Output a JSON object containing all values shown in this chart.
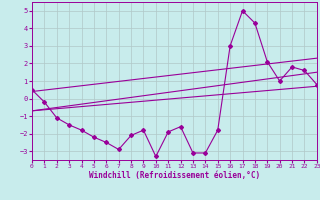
{
  "xlabel": "Windchill (Refroidissement éolien,°C)",
  "bg_color": "#c8ecec",
  "line_color": "#990099",
  "grid_color": "#b0c8c8",
  "x_min": 0,
  "x_max": 23,
  "y_min": -3.5,
  "y_max": 5.5,
  "yticks": [
    -3,
    -2,
    -1,
    0,
    1,
    2,
    3,
    4,
    5
  ],
  "xticks": [
    0,
    1,
    2,
    3,
    4,
    5,
    6,
    7,
    8,
    9,
    10,
    11,
    12,
    13,
    14,
    15,
    16,
    17,
    18,
    19,
    20,
    21,
    22,
    23
  ],
  "windchill_x": [
    0,
    1,
    2,
    3,
    4,
    5,
    6,
    7,
    8,
    9,
    10,
    11,
    12,
    13,
    14,
    15,
    16,
    17,
    18,
    19,
    20,
    21,
    22,
    23
  ],
  "windchill_y": [
    0.5,
    -0.2,
    -1.1,
    -1.5,
    -1.8,
    -2.2,
    -2.5,
    -2.9,
    -2.1,
    -1.8,
    -3.3,
    -1.9,
    -1.6,
    -3.1,
    -3.1,
    -1.8,
    3.0,
    5.0,
    4.3,
    2.1,
    1.0,
    1.8,
    1.6,
    0.8
  ],
  "line2_x": [
    0,
    23
  ],
  "line2_y": [
    -0.7,
    0.7
  ],
  "line3_x": [
    0,
    23
  ],
  "line3_y": [
    -0.7,
    1.5
  ],
  "line4_x": [
    0,
    23
  ],
  "line4_y": [
    0.4,
    2.3
  ]
}
